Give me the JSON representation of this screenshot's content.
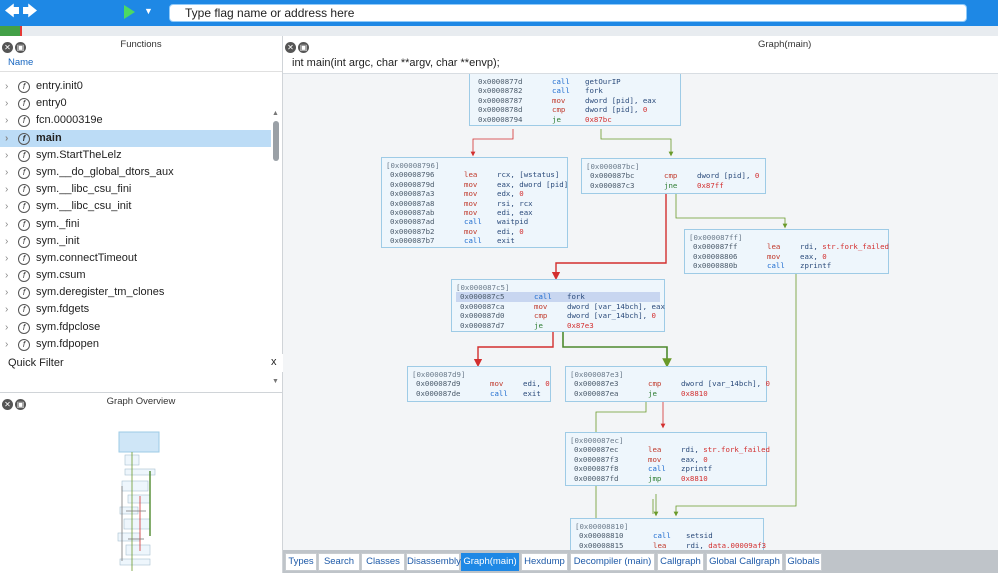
{
  "toolbar": {
    "back_icon": "back-arrow-icon",
    "forward_icon": "forward-arrow-icon",
    "address_placeholder": "Type flag name or address here"
  },
  "functions": {
    "title": "Functions",
    "column_header": "Name",
    "items": [
      {
        "label": "entry.init0"
      },
      {
        "label": "entry0"
      },
      {
        "label": "fcn.0000319e"
      },
      {
        "label": "main",
        "selected": true
      },
      {
        "label": "sym.StartTheLelz"
      },
      {
        "label": "sym.__do_global_dtors_aux"
      },
      {
        "label": "sym.__libc_csu_fini"
      },
      {
        "label": "sym.__libc_csu_init"
      },
      {
        "label": "sym._fini"
      },
      {
        "label": "sym._init"
      },
      {
        "label": "sym.connectTimeout"
      },
      {
        "label": "sym.csum"
      },
      {
        "label": "sym.deregister_tm_clones"
      },
      {
        "label": "sym.fdgets"
      },
      {
        "label": "sym.fdpclose"
      },
      {
        "label": "sym.fdpopen"
      }
    ],
    "quick_filter": "Quick Filter",
    "quick_filter_close": "x"
  },
  "overview": {
    "title": "Graph Overview"
  },
  "graph": {
    "title": "Graph(main)",
    "signature": "int main(int argc, char **argv, char **envp);",
    "nodes": {
      "n0": {
        "lines": [
          [
            "0x0000877d",
            "call",
            "getOurIP"
          ],
          [
            "0x00008782",
            "call",
            "fork"
          ],
          [
            "0x00008787",
            "mov",
            "dword [pid], eax"
          ],
          [
            "0x0000878d",
            "cmp",
            "dword [pid], 0"
          ],
          [
            "0x00008794",
            "je",
            "0x87bc"
          ]
        ]
      },
      "n1": {
        "header": "[0x00008796]",
        "lines": [
          [
            "0x00008796",
            "lea",
            "rcx, [wstatus]"
          ],
          [
            "0x0000879d",
            "mov",
            "eax, dword [pid]"
          ],
          [
            "0x000087a3",
            "mov",
            "edx, 0"
          ],
          [
            "0x000087a8",
            "mov",
            "rsi, rcx"
          ],
          [
            "0x000087ab",
            "mov",
            "edi, eax"
          ],
          [
            "0x000087ad",
            "call",
            "waitpid"
          ],
          [
            "0x000087b2",
            "mov",
            "edi, 0"
          ],
          [
            "0x000087b7",
            "call",
            "exit"
          ]
        ]
      },
      "n2": {
        "header": "[0x000087bc]",
        "lines": [
          [
            "0x000087bc",
            "cmp",
            "dword [pid], 0"
          ],
          [
            "0x000087c3",
            "jne",
            "0x87ff"
          ]
        ]
      },
      "n3": {
        "header": "[0x000087ff]",
        "lines": [
          [
            "0x000087ff",
            "lea",
            "rdi, str.fork_failed"
          ],
          [
            "0x00008806",
            "mov",
            "eax, 0"
          ],
          [
            "0x0000880b",
            "call",
            "zprintf"
          ]
        ]
      },
      "n4": {
        "header": "[0x000087c5]",
        "lines": [
          [
            "0x000087c5",
            "call",
            "fork"
          ],
          [
            "0x000087ca",
            "mov",
            "dword [var_14bch], eax"
          ],
          [
            "0x000087d0",
            "cmp",
            "dword [var_14bch], 0"
          ],
          [
            "0x000087d7",
            "je",
            "0x87e3"
          ]
        ]
      },
      "n5": {
        "header": "[0x000087d9]",
        "lines": [
          [
            "0x000087d9",
            "mov",
            "edi, 0"
          ],
          [
            "0x000087de",
            "call",
            "exit"
          ]
        ]
      },
      "n6": {
        "header": "[0x000087e3]",
        "lines": [
          [
            "0x000087e3",
            "cmp",
            "dword [var_14bch], 0"
          ],
          [
            "0x000087ea",
            "je",
            "0x8810"
          ]
        ]
      },
      "n7": {
        "header": "[0x000087ec]",
        "lines": [
          [
            "0x000087ec",
            "lea",
            "rdi, str.fork_failed"
          ],
          [
            "0x000087f3",
            "mov",
            "eax, 0"
          ],
          [
            "0x000087f8",
            "call",
            "zprintf"
          ],
          [
            "0x000087fd",
            "jmp",
            "0x8810"
          ]
        ]
      },
      "n8": {
        "header": "[0x00008810]",
        "lines": [
          [
            "0x00008810",
            "call",
            "setsid"
          ],
          [
            "0x00008815",
            "lea",
            "rdi, data.00009af3"
          ]
        ]
      }
    },
    "colors": {
      "true_edge": "#4e8a2e",
      "false_edge": "#d32f2f",
      "jump_edge": "#6a9a2a"
    }
  },
  "tabs": [
    {
      "label": "Types"
    },
    {
      "label": "Search"
    },
    {
      "label": "Classes"
    },
    {
      "label": "Disassembly"
    },
    {
      "label": "Graph(main)",
      "active": true
    },
    {
      "label": "Hexdump"
    },
    {
      "label": "Decompiler (main)"
    },
    {
      "label": "Callgraph"
    },
    {
      "label": "Global Callgraph"
    },
    {
      "label": "Globals"
    }
  ]
}
